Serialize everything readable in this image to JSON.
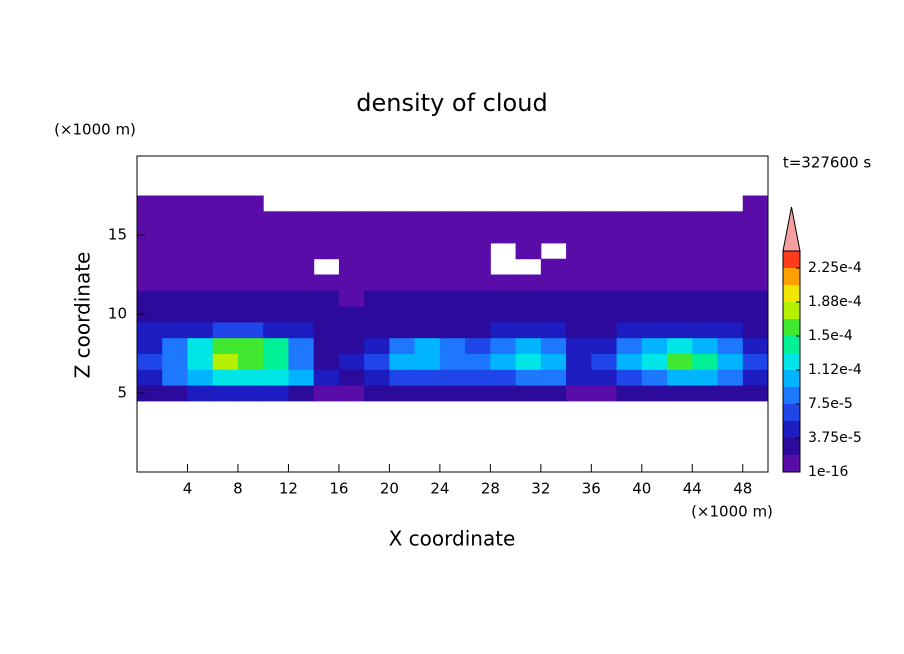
{
  "chart_data": {
    "type": "contour",
    "title": "density of cloud",
    "x_label": "X coordinate",
    "y_label": "Z coordinate",
    "x_unit": "(×1000 m)",
    "y_unit": "(×1000 m)",
    "annotation": "t=327600 s",
    "xlim": [
      0,
      50
    ],
    "ylim": [
      0,
      20
    ],
    "xticks": [
      4,
      8,
      12,
      16,
      20,
      24,
      28,
      32,
      36,
      40,
      44,
      48
    ],
    "yticks": [
      5,
      10,
      15
    ],
    "x": [
      1,
      3,
      5,
      7,
      9,
      11,
      13,
      15,
      17,
      19,
      21,
      23,
      25,
      27,
      29,
      31,
      33,
      35,
      37,
      39,
      41,
      43,
      45,
      47,
      49
    ],
    "y": [
      5,
      6,
      7,
      8,
      9,
      10,
      11,
      12,
      13,
      14,
      15,
      16,
      17
    ],
    "z": [
      [
        2e-05,
        3e-05,
        4e-05,
        4e-05,
        4e-05,
        4e-05,
        3e-05,
        1e-05,
        1e-05,
        2e-05,
        2e-05,
        2e-05,
        2e-05,
        2e-05,
        2e-05,
        2e-05,
        2e-05,
        1e-05,
        1e-05,
        2e-05,
        3e-05,
        3e-05,
        3e-05,
        3e-05,
        2e-05
      ],
      [
        5e-05,
        8e-05,
        0.00011,
        0.00012,
        0.00013,
        0.00012,
        0.0001,
        4e-05,
        3e-05,
        4e-05,
        6e-05,
        7e-05,
        7e-05,
        6e-05,
        7e-05,
        8e-05,
        8e-05,
        4e-05,
        4e-05,
        7e-05,
        9e-05,
        0.0001,
        0.0001,
        8e-05,
        5e-05
      ],
      [
        6e-05,
        9e-05,
        0.00012,
        0.00017,
        0.00016,
        0.00014,
        9e-05,
        3e-05,
        4e-05,
        7e-05,
        0.0001,
        0.00011,
        9e-05,
        9e-05,
        0.00011,
        0.00012,
        0.0001,
        5e-05,
        6e-05,
        0.0001,
        0.00013,
        0.00015,
        0.00014,
        0.0001,
        6e-05
      ],
      [
        5e-05,
        9e-05,
        0.00013,
        0.00016,
        0.00016,
        0.00014,
        9e-05,
        3e-05,
        3e-05,
        5e-05,
        8e-05,
        0.0001,
        8e-05,
        7e-05,
        9e-05,
        0.0001,
        9e-05,
        4e-05,
        4e-05,
        8e-05,
        0.0001,
        0.00012,
        0.00011,
        8e-05,
        5e-05
      ],
      [
        4e-05,
        4e-05,
        5e-05,
        6e-05,
        6e-05,
        5e-05,
        4e-05,
        3e-05,
        3e-05,
        3e-05,
        3e-05,
        3e-05,
        3e-05,
        3e-05,
        4e-05,
        4e-05,
        4e-05,
        3e-05,
        3e-05,
        4e-05,
        4e-05,
        4e-05,
        4e-05,
        4e-05,
        3e-05
      ],
      [
        3e-05,
        3e-05,
        3e-05,
        3e-05,
        3e-05,
        3e-05,
        3e-05,
        2e-05,
        2e-05,
        2e-05,
        3e-05,
        3e-05,
        3e-05,
        3e-05,
        3e-05,
        3e-05,
        3e-05,
        2e-05,
        2e-05,
        3e-05,
        3e-05,
        3e-05,
        3e-05,
        3e-05,
        3e-05
      ],
      [
        2e-05,
        2e-05,
        2e-05,
        2e-05,
        2e-05,
        2e-05,
        2e-05,
        2e-05,
        1e-05,
        2e-05,
        2e-05,
        2e-05,
        2e-05,
        2e-05,
        2e-05,
        2e-05,
        2e-05,
        2e-05,
        2e-05,
        2e-05,
        2e-05,
        2e-05,
        2e-05,
        2e-05,
        2e-05
      ],
      [
        1e-05,
        1e-05,
        1e-05,
        1e-05,
        1e-05,
        1e-05,
        1e-05,
        1e-05,
        1e-05,
        1e-05,
        1e-05,
        1e-05,
        1e-05,
        1e-05,
        1e-05,
        1e-05,
        1e-05,
        1e-05,
        1e-05,
        1e-05,
        1e-05,
        1e-05,
        1e-05,
        1e-05,
        1e-05
      ],
      [
        1e-05,
        1e-05,
        1e-05,
        1e-05,
        1e-05,
        1e-05,
        1e-05,
        null,
        1e-05,
        1e-05,
        1e-05,
        1e-05,
        1e-05,
        1e-05,
        null,
        null,
        1e-05,
        1e-05,
        1e-05,
        1e-05,
        1e-05,
        1e-05,
        1e-05,
        1e-05,
        1e-05
      ],
      [
        1e-05,
        1e-05,
        1e-05,
        1e-05,
        1e-05,
        1e-05,
        1e-05,
        1e-05,
        1e-05,
        1e-05,
        1e-05,
        1e-05,
        1e-05,
        1e-05,
        null,
        1e-05,
        null,
        1e-05,
        1e-05,
        1e-05,
        1e-05,
        1e-05,
        1e-05,
        1e-05,
        1e-05
      ],
      [
        1e-05,
        1e-05,
        1e-05,
        1e-05,
        1e-05,
        1e-05,
        1e-05,
        1e-05,
        1e-05,
        1e-05,
        1e-05,
        1e-05,
        1e-05,
        1e-05,
        1e-05,
        1e-05,
        1e-05,
        1e-05,
        1e-05,
        1e-05,
        1e-05,
        1e-05,
        1e-05,
        1e-05,
        1e-05
      ],
      [
        1e-05,
        1e-05,
        1e-05,
        1e-05,
        1e-05,
        1e-05,
        1e-05,
        1e-05,
        1e-05,
        1e-05,
        1e-05,
        1e-05,
        1e-05,
        1e-05,
        1e-05,
        1e-05,
        1e-05,
        1e-05,
        1e-05,
        1e-05,
        1e-05,
        1e-05,
        1e-05,
        1e-05,
        1e-05
      ],
      [
        1e-05,
        1e-05,
        1e-05,
        1e-05,
        1e-05,
        null,
        null,
        null,
        null,
        null,
        null,
        null,
        null,
        null,
        null,
        null,
        null,
        null,
        null,
        null,
        null,
        null,
        null,
        null,
        1e-05
      ]
    ],
    "colorbar": {
      "levels": [
        1e-16,
        1.875e-05,
        3.75e-05,
        5.625e-05,
        7.5e-05,
        9.375e-05,
        0.0001125,
        0.00013125,
        0.00015,
        0.00016875,
        0.0001875,
        0.00020625,
        0.000225,
        0.00024375
      ],
      "colors": [
        "#5a0ca8",
        "#2c0a9c",
        "#1c1cc0",
        "#1e46e8",
        "#1e78ff",
        "#00b4ff",
        "#00e6e6",
        "#00f096",
        "#40e830",
        "#b4f000",
        "#f0e600",
        "#ffa000",
        "#ff3c1e"
      ],
      "extend_color": "#f4a0a0",
      "ticks": [
        1e-16,
        {
          "value": 3.75e-05,
          "label": "3.75e-5"
        },
        {
          "value": 7.5e-05,
          "label": "7.5e-5"
        },
        {
          "value": 0.0001125,
          "label": "1.12e-4"
        },
        {
          "value": 0.00015,
          "label": "1.5e-4"
        },
        {
          "value": 0.0001875,
          "label": "1.88e-4"
        },
        {
          "value": 0.000225,
          "label": "2.25e-4"
        }
      ]
    }
  }
}
